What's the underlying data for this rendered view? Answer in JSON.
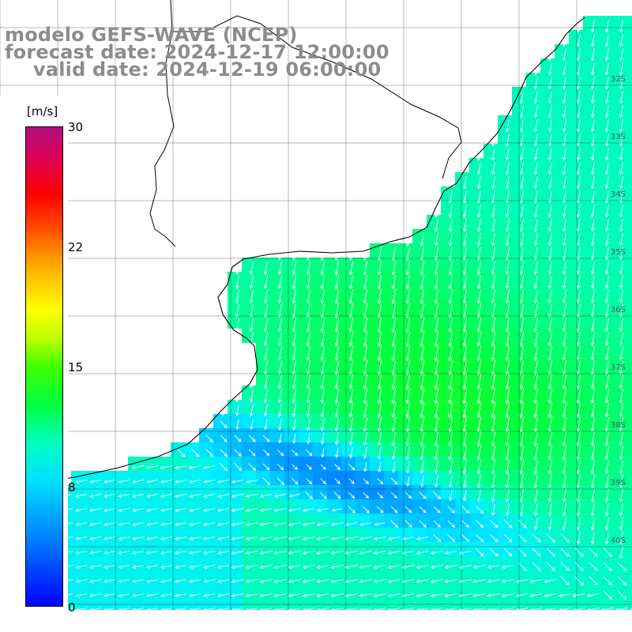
{
  "header": {
    "line1": "modelo GEFS-WAVE (NCEP)",
    "line2": "forecast date: 2024-12-17 12:00:00",
    "line3": "valid date: 2024-12-19 06:00:00"
  },
  "colorbar": {
    "unit": "[m/s]",
    "ticks": [
      "30",
      "22",
      "15",
      "8",
      "0"
    ]
  },
  "lat_labels": [
    "32S",
    "33S",
    "34S",
    "35S",
    "36S",
    "37S",
    "38S",
    "39S",
    "40S"
  ],
  "colors": {
    "land": "#ffffff",
    "grid": "#000000",
    "arrow": "#ffffff",
    "title": "#8c8c8c"
  }
}
